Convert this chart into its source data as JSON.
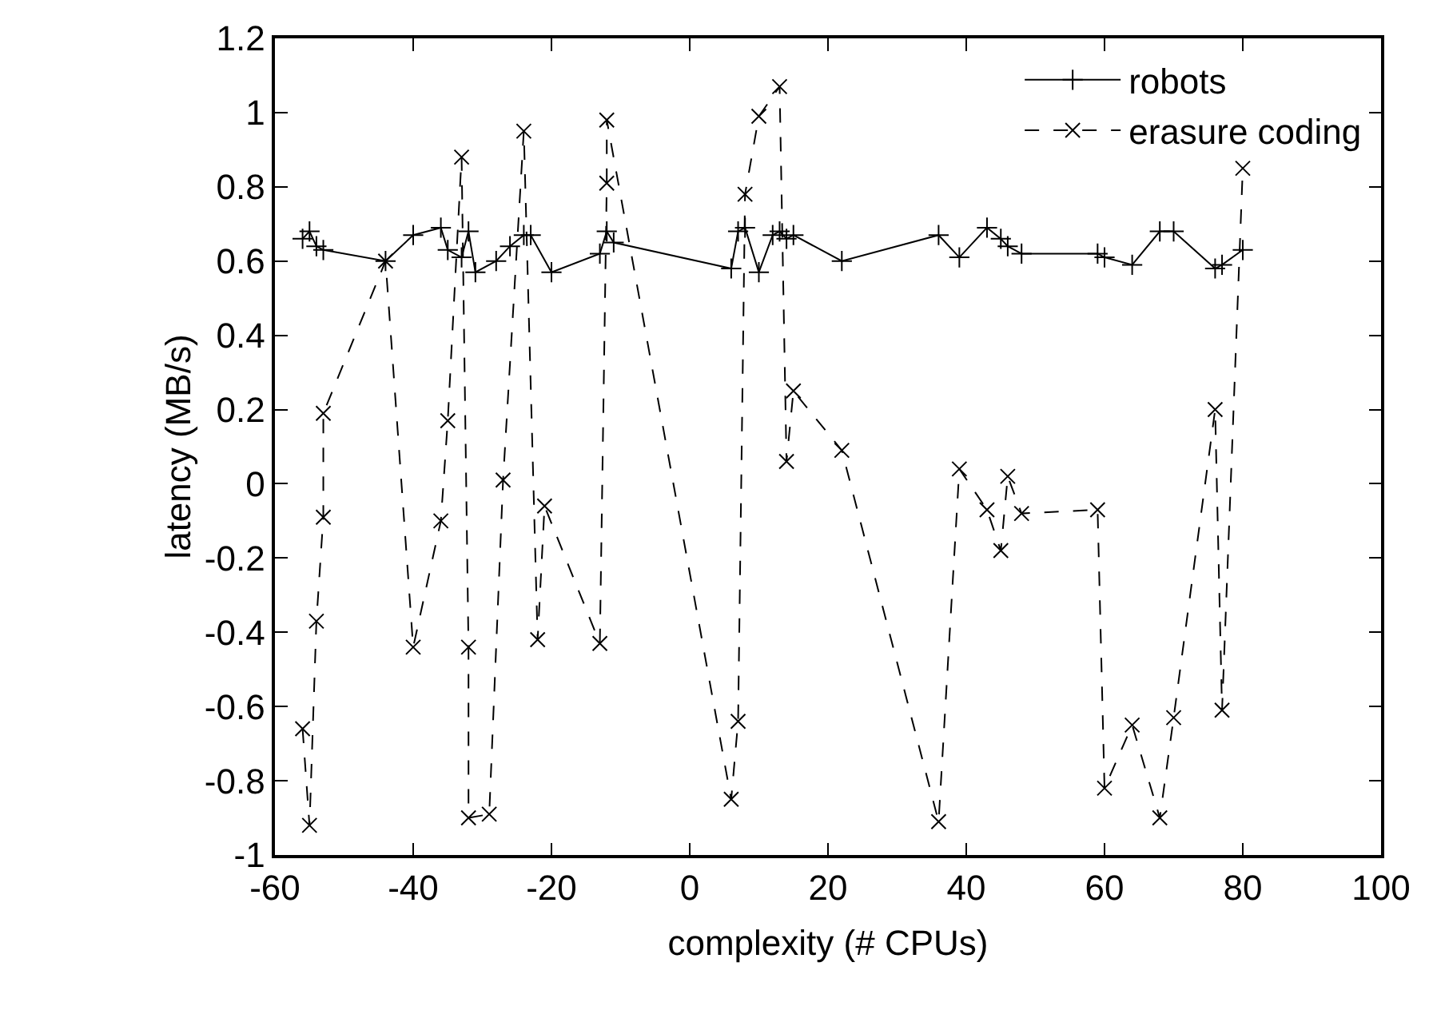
{
  "chart_data": {
    "type": "line",
    "xlabel": "complexity (# CPUs)",
    "ylabel": "latency (MB/s)",
    "xlim": [
      -60,
      100
    ],
    "xticks": [
      -60,
      -40,
      -20,
      0,
      20,
      40,
      60,
      80,
      100
    ],
    "ylim": [
      -1,
      1.2
    ],
    "yticks": [
      -1,
      -0.8,
      -0.6,
      -0.4,
      -0.2,
      0,
      0.2,
      0.4,
      0.6,
      0.8,
      1,
      1.2
    ],
    "legend": "top right",
    "series": [
      {
        "name": "robots",
        "color": "#000000",
        "marker": "cross",
        "line_style": "solid",
        "x": [
          -56,
          -55,
          -54,
          -53,
          -44,
          -40,
          -36,
          -35,
          -33,
          -32,
          -31,
          -28,
          -26,
          -24,
          -23,
          -20,
          -13,
          -12,
          -11,
          6,
          7,
          8,
          10,
          12,
          13,
          14,
          15,
          22,
          36,
          39,
          43,
          45,
          46,
          48,
          59,
          60,
          64,
          68,
          70,
          76,
          77,
          80
        ],
        "values": [
          0.66,
          0.68,
          0.64,
          0.63,
          0.6,
          0.67,
          0.69,
          0.63,
          0.61,
          0.68,
          0.57,
          0.6,
          0.64,
          0.67,
          0.67,
          0.57,
          0.62,
          0.68,
          0.65,
          0.58,
          0.68,
          0.69,
          0.57,
          0.67,
          0.68,
          0.66,
          0.67,
          0.6,
          0.67,
          0.61,
          0.69,
          0.66,
          0.64,
          0.62,
          0.62,
          0.61,
          0.59,
          0.68,
          0.68,
          0.58,
          0.59,
          0.63
        ]
      },
      {
        "name": "erasure coding",
        "color": "#000000",
        "marker": "x",
        "line_style": "dashed",
        "x": [
          -56,
          -55,
          -54,
          -53,
          -53,
          -44,
          -40,
          -36,
          -35,
          -33,
          -32,
          -32,
          -29,
          -27,
          -24,
          -22,
          -21,
          -13,
          -12,
          -12,
          6,
          7,
          8,
          10,
          13,
          14,
          15,
          22,
          36,
          39,
          43,
          45,
          46,
          48,
          59,
          60,
          64,
          68,
          70,
          76,
          77,
          80
        ],
        "values": [
          -0.66,
          -0.92,
          -0.37,
          -0.09,
          0.19,
          0.6,
          -0.44,
          -0.1,
          0.17,
          0.88,
          -0.44,
          -0.9,
          -0.89,
          0.01,
          0.95,
          -0.42,
          -0.06,
          -0.43,
          0.81,
          0.98,
          -0.85,
          -0.64,
          0.78,
          0.99,
          1.07,
          0.06,
          0.25,
          0.09,
          -0.91,
          0.04,
          -0.07,
          -0.18,
          0.02,
          -0.08,
          -0.07,
          -0.82,
          -0.65,
          -0.9,
          -0.63,
          0.2,
          -0.61,
          0.85
        ]
      }
    ]
  }
}
